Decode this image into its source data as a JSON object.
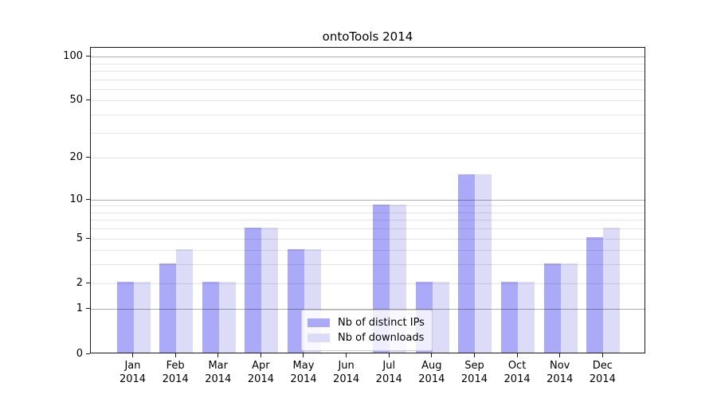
{
  "chart_data": {
    "type": "bar",
    "title": "ontoTools 2014",
    "categories": [
      "Jan 2014",
      "Feb 2014",
      "Mar 2014",
      "Apr 2014",
      "May 2014",
      "Jun 2014",
      "Jul 2014",
      "Aug 2014",
      "Sep 2014",
      "Oct 2014",
      "Nov 2014",
      "Dec 2014"
    ],
    "series": [
      {
        "name": "Nb of distinct IPs",
        "color": "#aaaaf8",
        "values": [
          2,
          3,
          2,
          6,
          4,
          0,
          9,
          2,
          15,
          2,
          3,
          5
        ]
      },
      {
        "name": "Nb of downloads",
        "color": "#dcdcf8",
        "values": [
          2,
          4,
          2,
          6,
          4,
          0,
          9,
          2,
          15,
          2,
          3,
          6
        ]
      }
    ],
    "xlabel": "",
    "ylabel": "",
    "yscale": "log10(1+value)",
    "yticks": [
      0,
      1,
      2,
      5,
      10,
      20,
      50,
      100
    ],
    "major_gridlines": [
      1,
      10,
      100
    ],
    "minor_gridlines": [
      2,
      3,
      4,
      5,
      6,
      7,
      8,
      9,
      20,
      30,
      40,
      50,
      60,
      70,
      80,
      90
    ],
    "ylim": [
      0,
      116
    ],
    "grid": true,
    "legend_position": "lower center"
  }
}
